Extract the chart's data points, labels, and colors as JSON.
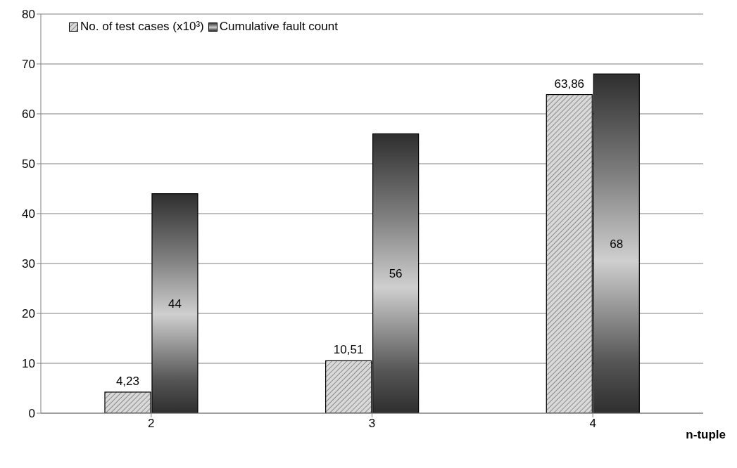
{
  "chart_data": {
    "type": "bar",
    "xlabel": "n-tuple",
    "categories": [
      "2",
      "3",
      "4"
    ],
    "series": [
      {
        "name": "No. of test cases (x10³)",
        "color": "#d9d9d9",
        "values": [
          4.23,
          10.51,
          63.86
        ],
        "value_labels": [
          "4,23",
          "10,51",
          "63,86"
        ]
      },
      {
        "name": "Cumulative fault count",
        "color": "#808080",
        "values": [
          44,
          56,
          68
        ],
        "value_labels": [
          "44",
          "56",
          "68"
        ]
      }
    ],
    "ylim": [
      0,
      80
    ],
    "yticks": [
      0,
      10,
      20,
      30,
      40,
      50,
      60,
      70,
      80
    ],
    "grid": "y",
    "legend": "top left"
  }
}
